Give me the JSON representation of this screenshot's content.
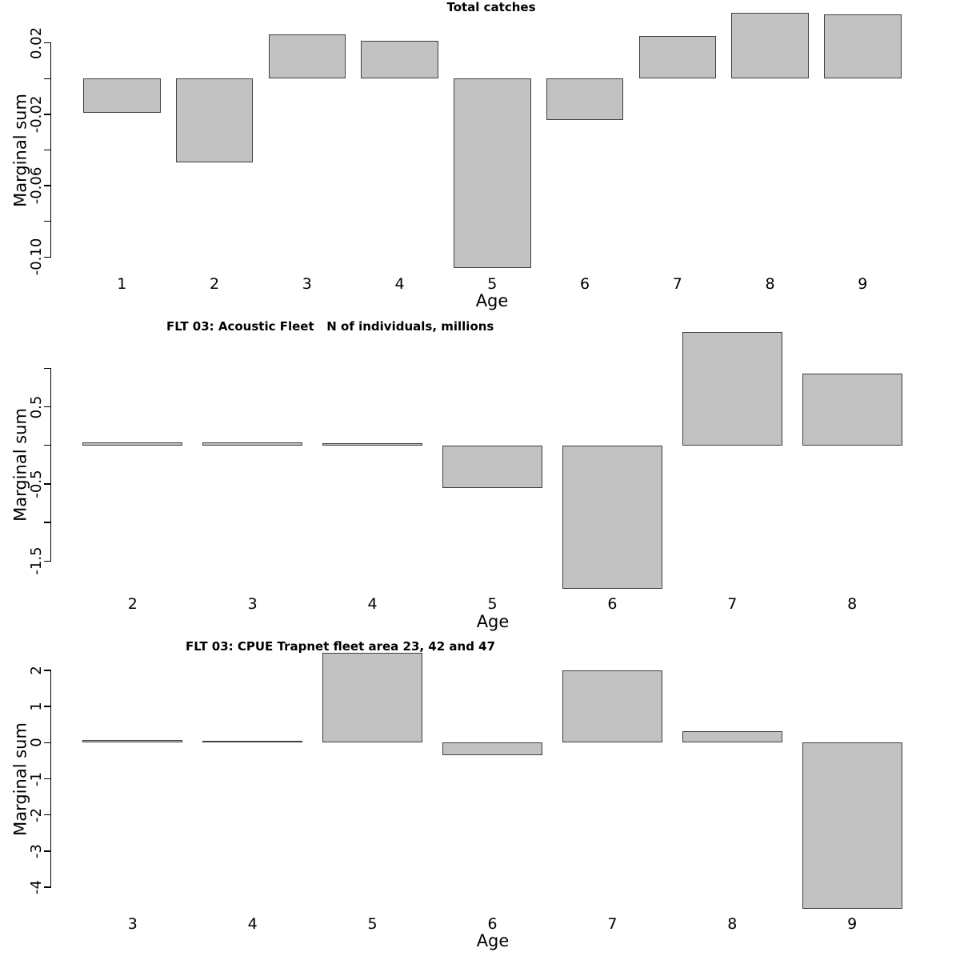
{
  "figure": {
    "background": "#ffffff",
    "bar_fill": "#c2c2c2",
    "bar_border": "#404040",
    "text_color": "#000000"
  },
  "chart_data": [
    {
      "type": "bar",
      "title": "Total catches",
      "xlabel": "Age",
      "ylabel": "Marginal sum",
      "categories": [
        "1",
        "2",
        "3",
        "4",
        "5",
        "6",
        "7",
        "8",
        "9"
      ],
      "values": [
        -0.019,
        -0.047,
        0.025,
        0.021,
        -0.106,
        -0.023,
        0.024,
        0.037,
        0.036
      ],
      "y_ticks": [
        0.02,
        0,
        -0.02,
        -0.04,
        -0.06,
        -0.08,
        -0.1
      ],
      "y_tick_labels": [
        "0.02",
        "",
        "-0.02",
        "",
        "-0.06",
        "",
        "-0.10"
      ],
      "ylim": [
        -0.112,
        0.026
      ],
      "grid": "off",
      "legend": "none"
    },
    {
      "type": "bar",
      "title": "FLT 03: Acoustic Fleet   N of individuals, millions",
      "xlabel": "Age",
      "ylabel": "Marginal sum",
      "categories": [
        "2",
        "3",
        "4",
        "5",
        "6",
        "7",
        "8"
      ],
      "values": [
        0.04,
        0.035,
        0.025,
        -0.55,
        -1.86,
        1.47,
        0.93
      ],
      "y_ticks": [
        1,
        0.5,
        0,
        -0.5,
        -1,
        -1.5
      ],
      "y_tick_labels": [
        "",
        "0.5",
        "",
        "-0.5",
        "",
        "-1.5"
      ],
      "ylim": [
        -1.86,
        1.47
      ],
      "grid": "off",
      "legend": "none"
    },
    {
      "type": "bar",
      "title": "FLT 03: CPUE Trapnet fleet area 23, 42 and 47",
      "xlabel": "Age",
      "ylabel": "Marginal sum",
      "categories": [
        "3",
        "4",
        "5",
        "6",
        "7",
        "8",
        "9"
      ],
      "values": [
        0.07,
        0.05,
        2.48,
        -0.35,
        2.0,
        0.31,
        -4.59
      ],
      "y_ticks": [
        2,
        1,
        0,
        -1,
        -2,
        -3,
        -4
      ],
      "y_tick_labels": [
        "2",
        "1",
        "0",
        "-1",
        "-2",
        "-3",
        "-4"
      ],
      "ylim": [
        -4.59,
        2.48
      ],
      "grid": "off",
      "legend": "none"
    }
  ]
}
